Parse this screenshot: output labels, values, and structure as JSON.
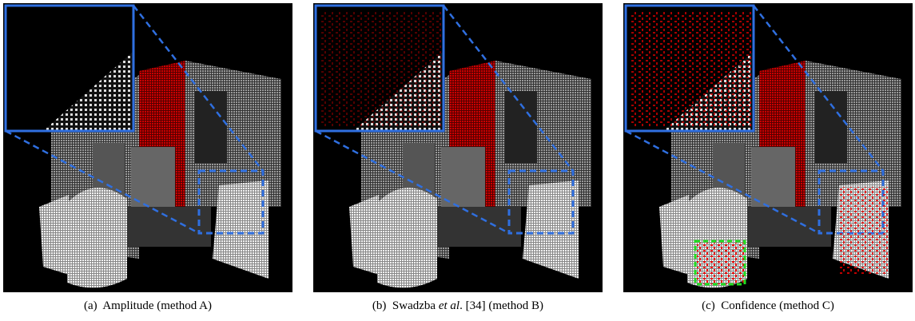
{
  "figure": {
    "panels": [
      {
        "label": "(a)",
        "caption": "Amplitude (method A)"
      },
      {
        "label": "(b)",
        "caption_parts": [
          "Swadzba ",
          "et al",
          ". [34] (method B)"
        ]
      },
      {
        "label": "(c)",
        "caption": "Confidence (method C)"
      }
    ]
  }
}
